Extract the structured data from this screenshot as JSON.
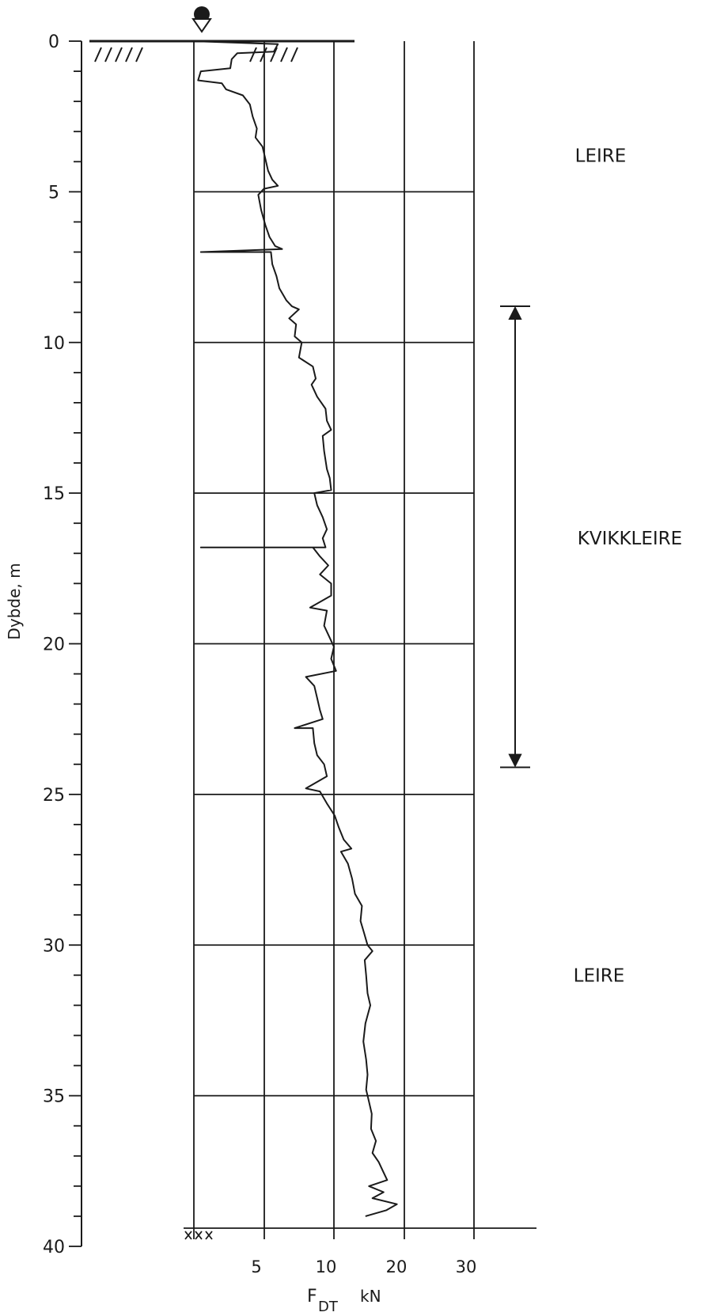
{
  "chart_data": {
    "type": "line",
    "ylabel": "Dybde, m",
    "xlabel_main": "F",
    "xlabel_sub": "DT",
    "xlabel_unit": "kN",
    "y_ticks": [
      "0",
      "5",
      "10",
      "15",
      "20",
      "25",
      "30",
      "35",
      "40"
    ],
    "x_ticks": [
      "5",
      "10",
      "20",
      "30"
    ],
    "ylim": [
      0,
      40
    ],
    "grid": true,
    "layers": [
      {
        "label": "LEIRE",
        "depth": 3.8
      },
      {
        "label": "KVIKKLEIRE",
        "depth": 16.5
      },
      {
        "label": "LEIRE",
        "depth": 31.0
      }
    ],
    "quick_clay_range_depth": [
      8.8,
      24.1
    ],
    "end_depth": 39.0,
    "series": [
      {
        "points": [
          [
            0,
            0.0
          ],
          [
            6.0,
            0.1
          ],
          [
            5.7,
            0.35
          ],
          [
            3.1,
            0.4
          ],
          [
            2.7,
            0.6
          ],
          [
            2.6,
            0.9
          ],
          [
            0.5,
            1.0
          ],
          [
            0.3,
            1.3
          ],
          [
            2.0,
            1.4
          ],
          [
            2.3,
            1.6
          ],
          [
            3.5,
            1.8
          ],
          [
            4.0,
            2.1
          ],
          [
            4.2,
            2.5
          ],
          [
            4.5,
            2.9
          ],
          [
            4.4,
            3.2
          ],
          [
            4.9,
            3.5
          ],
          [
            5.1,
            3.9
          ],
          [
            5.3,
            4.3
          ],
          [
            5.6,
            4.6
          ],
          [
            6.0,
            4.8
          ],
          [
            5.0,
            4.9
          ],
          [
            4.6,
            5.1
          ],
          [
            4.8,
            5.6
          ],
          [
            5.1,
            6.1
          ],
          [
            5.4,
            6.5
          ],
          [
            5.8,
            6.8
          ],
          [
            6.3,
            6.9
          ],
          [
            0.5,
            7.0
          ],
          [
            5.5,
            7.0
          ],
          [
            5.6,
            7.4
          ],
          [
            5.9,
            7.8
          ],
          [
            6.1,
            8.2
          ],
          [
            6.6,
            8.6
          ],
          [
            7.0,
            8.8
          ],
          [
            7.5,
            8.9
          ],
          [
            6.8,
            9.2
          ],
          [
            7.3,
            9.4
          ],
          [
            7.2,
            9.8
          ],
          [
            7.7,
            10.0
          ],
          [
            7.5,
            10.5
          ],
          [
            8.5,
            10.8
          ],
          [
            8.7,
            11.2
          ],
          [
            8.4,
            11.4
          ],
          [
            8.8,
            11.8
          ],
          [
            9.4,
            12.2
          ],
          [
            9.5,
            12.6
          ],
          [
            9.8,
            12.9
          ],
          [
            9.2,
            13.1
          ],
          [
            9.3,
            13.6
          ],
          [
            9.5,
            14.2
          ],
          [
            9.7,
            14.5
          ],
          [
            9.8,
            14.9
          ],
          [
            8.6,
            15.0
          ],
          [
            8.8,
            15.4
          ],
          [
            9.2,
            15.8
          ],
          [
            9.5,
            16.2
          ],
          [
            9.2,
            16.5
          ],
          [
            9.4,
            16.8
          ],
          [
            0.5,
            16.8
          ],
          [
            8.5,
            16.8
          ],
          [
            9.0,
            17.1
          ],
          [
            9.6,
            17.4
          ],
          [
            9.0,
            17.7
          ],
          [
            9.8,
            18.0
          ],
          [
            9.8,
            18.4
          ],
          [
            8.3,
            18.8
          ],
          [
            9.5,
            18.9
          ],
          [
            9.3,
            19.4
          ],
          [
            9.6,
            19.7
          ],
          [
            10.0,
            20.1
          ],
          [
            9.8,
            20.5
          ],
          [
            10.3,
            20.9
          ],
          [
            8.0,
            21.1
          ],
          [
            8.6,
            21.4
          ],
          [
            8.8,
            21.8
          ],
          [
            9.0,
            22.2
          ],
          [
            9.2,
            22.5
          ],
          [
            7.2,
            22.8
          ],
          [
            8.5,
            22.8
          ],
          [
            8.6,
            23.3
          ],
          [
            8.8,
            23.7
          ],
          [
            9.3,
            24.0
          ],
          [
            9.5,
            24.4
          ],
          [
            8.0,
            24.8
          ],
          [
            9.0,
            24.9
          ],
          [
            9.5,
            25.3
          ],
          [
            10.1,
            25.7
          ],
          [
            10.7,
            26.1
          ],
          [
            11.4,
            26.5
          ],
          [
            12.5,
            26.8
          ],
          [
            11.0,
            26.9
          ],
          [
            12.0,
            27.3
          ],
          [
            12.6,
            27.8
          ],
          [
            13.0,
            28.3
          ],
          [
            14.0,
            28.7
          ],
          [
            13.8,
            29.2
          ],
          [
            14.3,
            29.6
          ],
          [
            14.8,
            30.0
          ],
          [
            15.5,
            30.2
          ],
          [
            14.4,
            30.5
          ],
          [
            14.6,
            31.0
          ],
          [
            14.8,
            31.6
          ],
          [
            15.2,
            32.0
          ],
          [
            14.5,
            32.6
          ],
          [
            14.2,
            33.2
          ],
          [
            14.6,
            33.8
          ],
          [
            14.8,
            34.3
          ],
          [
            14.6,
            34.8
          ],
          [
            15.0,
            35.2
          ],
          [
            15.4,
            35.6
          ],
          [
            15.3,
            36.1
          ],
          [
            16.0,
            36.5
          ],
          [
            15.5,
            36.9
          ],
          [
            16.4,
            37.2
          ],
          [
            17.0,
            37.5
          ],
          [
            17.6,
            37.8
          ],
          [
            15.0,
            38.0
          ],
          [
            17.1,
            38.2
          ],
          [
            15.5,
            38.4
          ],
          [
            19.0,
            38.6
          ],
          [
            17.5,
            38.8
          ],
          [
            14.5,
            39.0
          ]
        ]
      }
    ]
  }
}
